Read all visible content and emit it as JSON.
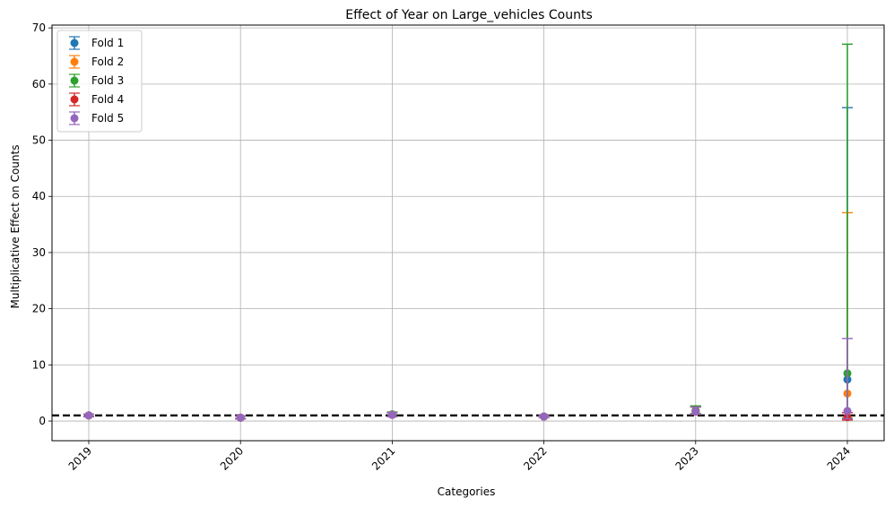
{
  "chart_data": {
    "type": "scatter",
    "title": "Effect of Year on Large_vehicles Counts",
    "xlabel": "Categories",
    "ylabel": "Multiplicative Effect on Counts",
    "categories": [
      "2019",
      "2020",
      "2021",
      "2022",
      "2023",
      "2024"
    ],
    "ylim": [
      -3.5,
      70.5
    ],
    "yticks": [
      0,
      10,
      20,
      30,
      40,
      50,
      60,
      70
    ],
    "grid": true,
    "legend_position": "top-left",
    "reference_line": 1.0,
    "series": [
      {
        "name": "Fold 1",
        "color": "#1f77b4",
        "values": [
          1.0,
          0.6,
          1.1,
          0.8,
          1.8,
          7.4
        ],
        "lower": [
          0.8,
          0.4,
          0.8,
          0.6,
          1.3,
          0.5
        ],
        "upper": [
          1.2,
          0.9,
          1.5,
          1.0,
          2.6,
          55.8
        ]
      },
      {
        "name": "Fold 2",
        "color": "#ff7f0e",
        "values": [
          1.0,
          0.6,
          1.1,
          0.8,
          1.7,
          4.9
        ],
        "lower": [
          0.8,
          0.4,
          0.8,
          0.6,
          1.2,
          0.5
        ],
        "upper": [
          1.2,
          0.9,
          1.5,
          1.0,
          2.5,
          37.1
        ]
      },
      {
        "name": "Fold 3",
        "color": "#2ca02c",
        "values": [
          1.0,
          0.6,
          1.2,
          0.8,
          1.9,
          8.5
        ],
        "lower": [
          0.8,
          0.4,
          0.9,
          0.6,
          1.3,
          0.5
        ],
        "upper": [
          1.2,
          0.9,
          1.6,
          1.0,
          2.7,
          67.1
        ]
      },
      {
        "name": "Fold 4",
        "color": "#d62728",
        "values": [
          1.0,
          0.6,
          1.1,
          0.8,
          1.7,
          0.7
        ],
        "lower": [
          0.8,
          0.4,
          0.8,
          0.6,
          1.2,
          0.2
        ],
        "upper": [
          1.2,
          0.9,
          1.5,
          1.0,
          2.5,
          1.5
        ]
      },
      {
        "name": "Fold 5",
        "color": "#9467bd",
        "values": [
          1.0,
          0.6,
          1.1,
          0.8,
          1.7,
          1.8
        ],
        "lower": [
          0.8,
          0.4,
          0.8,
          0.6,
          1.2,
          0.4
        ],
        "upper": [
          1.2,
          0.9,
          1.5,
          1.0,
          2.5,
          14.7
        ]
      }
    ]
  }
}
